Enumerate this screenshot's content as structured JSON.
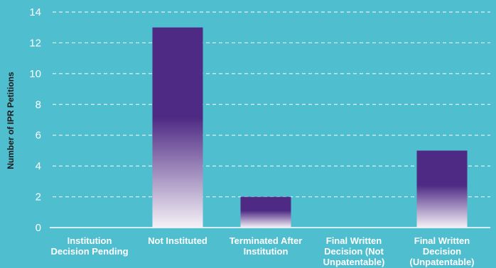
{
  "colors": {
    "background": "#4fbfd0",
    "bar_top": "#4e2a84",
    "bar_bottom": "#f5f1f7",
    "grid": "#ffffff",
    "text": "#ffffff"
  },
  "chart_data": {
    "type": "bar",
    "title": "",
    "xlabel": "",
    "ylabel": "Number of IPR Petitions",
    "ylim": [
      0,
      14
    ],
    "yticks": [
      0,
      2,
      4,
      6,
      8,
      10,
      12,
      14
    ],
    "grid": "dashed horizontal",
    "categories": [
      [
        "Institution",
        "Decision Pending"
      ],
      [
        "Not Instituted"
      ],
      [
        "Terminated After",
        "Institution"
      ],
      [
        "Final Written",
        "Decision (Not",
        "Unpatentable)"
      ],
      [
        "Final Written",
        "Decision",
        "(Unpatentable)"
      ]
    ],
    "values": [
      0,
      13,
      2,
      0,
      5
    ]
  }
}
